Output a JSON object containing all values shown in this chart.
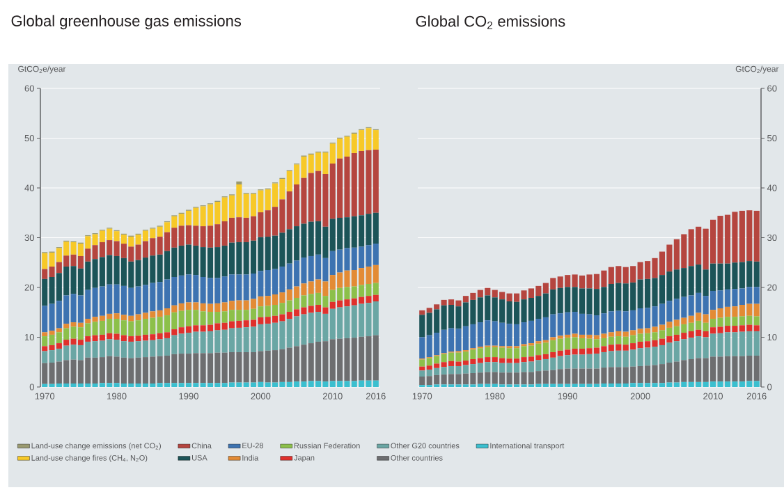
{
  "chart_data": [
    {
      "type": "bar",
      "stacked": true,
      "title": "Global greenhouse gas emissions",
      "ylabel": "GtCO$_{2}$e/year",
      "grid": "y",
      "legend": "bottom",
      "x": [
        1970,
        1971,
        1972,
        1973,
        1974,
        1975,
        1976,
        1977,
        1978,
        1979,
        1980,
        1981,
        1982,
        1983,
        1984,
        1985,
        1986,
        1987,
        1988,
        1989,
        1990,
        1991,
        1992,
        1993,
        1994,
        1995,
        1996,
        1997,
        1998,
        1999,
        2000,
        2001,
        2002,
        2003,
        2004,
        2005,
        2006,
        2007,
        2008,
        2009,
        2010,
        2011,
        2012,
        2013,
        2014,
        2015,
        2016
      ],
      "xlim": [
        1969.4,
        2016.6
      ],
      "xticks": [
        1970,
        1980,
        1990,
        2000,
        2010,
        2016
      ],
      "ylim": [
        0,
        60
      ],
      "yticks": [
        0,
        10,
        20,
        30,
        40,
        50,
        60
      ],
      "series": [
        {
          "name": "International transport",
          "color": "#3bbfcf",
          "values": [
            0.6,
            0.6,
            0.7,
            0.7,
            0.7,
            0.7,
            0.7,
            0.7,
            0.8,
            0.8,
            0.8,
            0.7,
            0.7,
            0.7,
            0.7,
            0.7,
            0.8,
            0.8,
            0.8,
            0.8,
            0.8,
            0.8,
            0.8,
            0.8,
            0.8,
            0.8,
            0.9,
            0.9,
            0.9,
            0.9,
            1.0,
            0.9,
            0.9,
            1.0,
            1.0,
            1.1,
            1.1,
            1.2,
            1.2,
            1.1,
            1.2,
            1.2,
            1.2,
            1.2,
            1.3,
            1.3,
            1.3
          ]
        },
        {
          "name": "Other countries",
          "color": "#6d6e70",
          "values": [
            4.2,
            4.3,
            4.4,
            4.7,
            4.8,
            4.7,
            5.2,
            5.2,
            5.2,
            5.4,
            5.3,
            5.2,
            5.1,
            5.2,
            5.3,
            5.4,
            5.4,
            5.5,
            5.8,
            5.9,
            5.9,
            6.0,
            6.0,
            6.0,
            6.1,
            6.1,
            6.1,
            6.1,
            6.1,
            6.1,
            6.2,
            6.4,
            6.5,
            6.6,
            6.9,
            7.1,
            7.4,
            7.6,
            7.9,
            8.1,
            8.4,
            8.5,
            8.6,
            8.7,
            8.8,
            8.9,
            9.1
          ]
        },
        {
          "name": "Other G20 countries",
          "color": "#6aa6a4",
          "values": [
            2.4,
            2.5,
            2.6,
            2.9,
            3.0,
            3.0,
            3.2,
            3.3,
            3.3,
            3.4,
            3.4,
            3.3,
            3.3,
            3.3,
            3.3,
            3.3,
            3.4,
            3.5,
            3.8,
            4.0,
            4.2,
            4.3,
            4.3,
            4.4,
            4.5,
            4.6,
            4.8,
            4.9,
            5.0,
            5.1,
            5.4,
            5.4,
            5.5,
            5.6,
            5.8,
            6.0,
            6.1,
            6.1,
            6.0,
            5.5,
            6.1,
            6.3,
            6.4,
            6.5,
            6.6,
            6.7,
            6.8
          ]
        },
        {
          "name": "Japan",
          "color": "#e0302c",
          "values": [
            1.0,
            1.0,
            1.1,
            1.2,
            1.2,
            1.1,
            1.1,
            1.2,
            1.2,
            1.2,
            1.2,
            1.2,
            1.1,
            1.1,
            1.2,
            1.2,
            1.2,
            1.2,
            1.2,
            1.3,
            1.3,
            1.3,
            1.3,
            1.3,
            1.4,
            1.4,
            1.4,
            1.4,
            1.4,
            1.4,
            1.4,
            1.4,
            1.4,
            1.4,
            1.4,
            1.4,
            1.4,
            1.4,
            1.4,
            1.3,
            1.4,
            1.4,
            1.4,
            1.4,
            1.4,
            1.4,
            1.3
          ]
        },
        {
          "name": "Russian Federation",
          "color": "#8cc04a",
          "values": [
            2.0,
            2.1,
            2.2,
            2.3,
            2.4,
            2.5,
            2.6,
            2.7,
            2.8,
            2.9,
            3.0,
            3.0,
            3.0,
            3.1,
            3.2,
            3.3,
            3.3,
            3.4,
            3.4,
            3.3,
            3.3,
            3.1,
            2.8,
            2.6,
            2.3,
            2.3,
            2.3,
            2.2,
            2.1,
            2.2,
            2.2,
            2.2,
            2.2,
            2.3,
            2.3,
            2.3,
            2.4,
            2.4,
            2.4,
            2.3,
            2.4,
            2.5,
            2.5,
            2.4,
            2.4,
            2.4,
            2.4
          ]
        },
        {
          "name": "India",
          "color": "#e38b35",
          "values": [
            0.8,
            0.8,
            0.8,
            0.9,
            0.9,
            0.9,
            0.9,
            1.0,
            1.0,
            1.0,
            1.1,
            1.1,
            1.1,
            1.2,
            1.2,
            1.3,
            1.3,
            1.4,
            1.4,
            1.5,
            1.5,
            1.5,
            1.6,
            1.6,
            1.7,
            1.8,
            1.8,
            1.9,
            1.9,
            2.0,
            2.0,
            2.0,
            2.1,
            2.1,
            2.2,
            2.3,
            2.4,
            2.5,
            2.7,
            2.9,
            3.0,
            3.1,
            3.3,
            3.3,
            3.4,
            3.5,
            3.6
          ]
        },
        {
          "name": "EU-28",
          "color": "#3d73b1",
          "values": [
            5.3,
            5.4,
            5.5,
            5.7,
            5.7,
            5.5,
            5.8,
            5.8,
            5.9,
            5.9,
            5.8,
            5.8,
            5.6,
            5.6,
            5.6,
            5.7,
            5.7,
            5.8,
            5.7,
            5.6,
            5.6,
            5.5,
            5.3,
            5.2,
            5.1,
            5.2,
            5.3,
            5.2,
            5.2,
            5.1,
            5.1,
            5.2,
            5.1,
            5.2,
            5.2,
            5.2,
            5.2,
            5.1,
            5.0,
            4.7,
            4.8,
            4.6,
            4.5,
            4.5,
            4.3,
            4.3,
            4.3
          ]
        },
        {
          "name": "USA",
          "color": "#1c5458",
          "values": [
            5.4,
            5.4,
            5.6,
            5.8,
            5.6,
            5.4,
            5.7,
            5.8,
            5.9,
            5.9,
            5.7,
            5.6,
            5.3,
            5.3,
            5.5,
            5.5,
            5.5,
            5.7,
            5.9,
            6.0,
            6.0,
            5.9,
            6.0,
            6.1,
            6.2,
            6.2,
            6.4,
            6.5,
            6.5,
            6.6,
            6.8,
            6.7,
            6.7,
            6.8,
            6.9,
            6.9,
            6.8,
            6.9,
            6.7,
            6.3,
            6.5,
            6.4,
            6.2,
            6.3,
            6.3,
            6.3,
            6.2
          ]
        },
        {
          "name": "China",
          "color": "#b5453f",
          "values": [
            2.0,
            2.1,
            2.2,
            2.2,
            2.3,
            2.5,
            2.6,
            2.8,
            3.0,
            3.0,
            3.0,
            2.9,
            3.0,
            3.1,
            3.3,
            3.5,
            3.6,
            3.8,
            4.0,
            4.0,
            3.9,
            4.0,
            4.2,
            4.4,
            4.6,
            4.9,
            5.0,
            5.0,
            4.9,
            4.9,
            5.0,
            5.3,
            5.8,
            6.7,
            7.6,
            8.4,
            9.2,
            9.8,
            10.1,
            10.6,
            11.1,
            11.9,
            12.2,
            12.7,
            12.9,
            12.8,
            12.7
          ]
        },
        {
          "name": "Land-use change fires (CH$_{4}$, N$_{2}$O)",
          "color": "#f7c928",
          "values": [
            3.2,
            2.8,
            2.8,
            2.8,
            2.5,
            2.5,
            2.5,
            2.2,
            2.3,
            2.3,
            2.0,
            1.8,
            2.0,
            2.0,
            2.1,
            1.9,
            2.0,
            2.0,
            2.3,
            2.4,
            2.9,
            3.6,
            4.0,
            4.3,
            4.5,
            4.8,
            4.5,
            6.6,
            4.8,
            4.5,
            4.4,
            4.2,
            4.7,
            4.1,
            4.1,
            4.0,
            4.3,
            3.7,
            3.7,
            4.3,
            4.0,
            4.0,
            4.0,
            3.9,
            4.2,
            4.4,
            3.9
          ]
        },
        {
          "name": "Land-use change emissions (net CO$_{2}$)",
          "color": "#9a9a70",
          "values": [
            0.2,
            0.2,
            0.2,
            0.2,
            0.2,
            0.2,
            0.2,
            0.2,
            0.2,
            0.2,
            0.2,
            0.2,
            0.2,
            0.2,
            0.2,
            0.2,
            0.2,
            0.2,
            0.2,
            0.2,
            0.2,
            0.2,
            0.2,
            0.2,
            0.2,
            0.2,
            0.2,
            0.6,
            0.2,
            0.2,
            0.2,
            0.2,
            0.2,
            0.2,
            0.2,
            0.2,
            0.2,
            0.2,
            0.2,
            0.2,
            0.2,
            0.2,
            0.2,
            0.2,
            0.2,
            0.2,
            0.2
          ]
        }
      ]
    },
    {
      "type": "bar",
      "stacked": true,
      "title": "Global CO$_{2}$ emissions",
      "ylabel": "GtCO$_{2}$/year",
      "grid": "y",
      "x": [
        1970,
        1971,
        1972,
        1973,
        1974,
        1975,
        1976,
        1977,
        1978,
        1979,
        1980,
        1981,
        1982,
        1983,
        1984,
        1985,
        1986,
        1987,
        1988,
        1989,
        1990,
        1991,
        1992,
        1993,
        1994,
        1995,
        1996,
        1997,
        1998,
        1999,
        2000,
        2001,
        2002,
        2003,
        2004,
        2005,
        2006,
        2007,
        2008,
        2009,
        2010,
        2011,
        2012,
        2013,
        2014,
        2015,
        2016
      ],
      "xlim": [
        1969.4,
        2016.6
      ],
      "xticks": [
        1970,
        1980,
        1990,
        2000,
        2010,
        2016
      ],
      "ylim": [
        0,
        60
      ],
      "yticks": [
        0,
        10,
        20,
        30,
        40,
        50,
        60
      ],
      "series": [
        {
          "color": "#3bbfcf",
          "values": [
            0.4,
            0.4,
            0.5,
            0.5,
            0.5,
            0.5,
            0.5,
            0.5,
            0.6,
            0.6,
            0.6,
            0.5,
            0.5,
            0.5,
            0.5,
            0.5,
            0.6,
            0.6,
            0.6,
            0.6,
            0.6,
            0.6,
            0.6,
            0.6,
            0.6,
            0.7,
            0.7,
            0.7,
            0.7,
            0.8,
            0.8,
            0.8,
            0.8,
            0.8,
            0.9,
            0.9,
            1.0,
            1.0,
            1.0,
            1.0,
            1.1,
            1.1,
            1.1,
            1.1,
            1.1,
            1.2,
            1.2
          ]
        },
        {
          "color": "#6d6e70",
          "values": [
            1.7,
            1.8,
            1.9,
            2.0,
            2.1,
            2.1,
            2.2,
            2.3,
            2.3,
            2.4,
            2.4,
            2.4,
            2.4,
            2.4,
            2.5,
            2.5,
            2.6,
            2.7,
            2.8,
            3.0,
            3.1,
            3.1,
            3.1,
            3.1,
            3.1,
            3.2,
            3.3,
            3.3,
            3.3,
            3.3,
            3.4,
            3.5,
            3.6,
            3.8,
            4.0,
            4.2,
            4.4,
            4.6,
            4.8,
            4.8,
            5.0,
            5.0,
            5.1,
            5.1,
            5.1,
            5.1,
            5.1
          ]
        },
        {
          "color": "#6aa6a4",
          "values": [
            1.2,
            1.3,
            1.4,
            1.5,
            1.6,
            1.6,
            1.7,
            1.8,
            1.9,
            2.0,
            2.0,
            1.9,
            1.9,
            1.9,
            2.0,
            2.1,
            2.2,
            2.3,
            2.5,
            2.6,
            2.7,
            2.8,
            2.8,
            2.9,
            3.0,
            3.1,
            3.2,
            3.3,
            3.3,
            3.4,
            3.6,
            3.6,
            3.7,
            3.8,
            4.0,
            4.1,
            4.2,
            4.3,
            4.4,
            4.2,
            4.6,
            4.7,
            4.8,
            4.8,
            4.9,
            4.9,
            4.9
          ]
        },
        {
          "color": "#e0302c",
          "values": [
            0.8,
            0.8,
            0.9,
            1.0,
            1.0,
            0.9,
            0.9,
            1.0,
            1.0,
            1.0,
            1.0,
            1.0,
            0.9,
            0.9,
            1.0,
            1.0,
            1.0,
            1.0,
            1.1,
            1.1,
            1.1,
            1.2,
            1.2,
            1.2,
            1.2,
            1.2,
            1.3,
            1.3,
            1.2,
            1.3,
            1.3,
            1.3,
            1.3,
            1.3,
            1.3,
            1.3,
            1.3,
            1.3,
            1.3,
            1.2,
            1.3,
            1.3,
            1.3,
            1.3,
            1.3,
            1.3,
            1.2
          ]
        },
        {
          "color": "#8cc04a",
          "values": [
            1.4,
            1.5,
            1.5,
            1.6,
            1.7,
            1.8,
            1.8,
            1.9,
            2.0,
            2.0,
            2.0,
            2.1,
            2.1,
            2.1,
            2.2,
            2.2,
            2.3,
            2.3,
            2.4,
            2.4,
            2.4,
            2.3,
            2.1,
            1.9,
            1.7,
            1.6,
            1.6,
            1.6,
            1.6,
            1.6,
            1.6,
            1.6,
            1.6,
            1.7,
            1.7,
            1.7,
            1.7,
            1.7,
            1.8,
            1.7,
            1.7,
            1.8,
            1.8,
            1.8,
            1.8,
            1.8,
            1.8
          ]
        },
        {
          "color": "#e38b35",
          "values": [
            0.2,
            0.2,
            0.2,
            0.2,
            0.2,
            0.3,
            0.3,
            0.3,
            0.3,
            0.3,
            0.3,
            0.3,
            0.4,
            0.4,
            0.4,
            0.5,
            0.5,
            0.5,
            0.6,
            0.6,
            0.6,
            0.7,
            0.7,
            0.8,
            0.8,
            0.9,
            0.9,
            1.0,
            1.0,
            1.0,
            1.0,
            1.0,
            1.1,
            1.1,
            1.2,
            1.3,
            1.3,
            1.4,
            1.6,
            1.7,
            1.8,
            1.9,
            2.0,
            2.1,
            2.3,
            2.4,
            2.5
          ]
        },
        {
          "color": "#3d73b1",
          "values": [
            4.3,
            4.4,
            4.5,
            4.7,
            4.7,
            4.5,
            4.8,
            4.8,
            4.9,
            5.1,
            4.9,
            4.7,
            4.5,
            4.4,
            4.4,
            4.5,
            4.5,
            4.6,
            4.6,
            4.5,
            4.5,
            4.4,
            4.2,
            4.1,
            4.0,
            4.1,
            4.2,
            4.1,
            4.1,
            4.0,
            4.1,
            4.1,
            4.1,
            4.2,
            4.2,
            4.2,
            4.2,
            4.1,
            4.0,
            3.7,
            3.8,
            3.6,
            3.5,
            3.5,
            3.3,
            3.4,
            3.4
          ]
        },
        {
          "color": "#1c5458",
          "values": [
            4.5,
            4.5,
            4.7,
            4.9,
            4.7,
            4.5,
            4.8,
            4.9,
            5.0,
            5.0,
            4.8,
            4.7,
            4.5,
            4.5,
            4.6,
            4.6,
            4.6,
            4.8,
            5.0,
            5.1,
            5.1,
            5.0,
            5.1,
            5.2,
            5.3,
            5.3,
            5.5,
            5.6,
            5.6,
            5.6,
            5.8,
            5.8,
            5.7,
            5.8,
            5.9,
            5.9,
            5.8,
            5.9,
            5.7,
            5.3,
            5.5,
            5.4,
            5.2,
            5.3,
            5.3,
            5.2,
            5.1
          ]
        },
        {
          "color": "#b5453f",
          "values": [
            0.9,
            1.0,
            1.0,
            1.1,
            1.1,
            1.2,
            1.3,
            1.4,
            1.5,
            1.5,
            1.5,
            1.5,
            1.6,
            1.7,
            1.8,
            1.9,
            2.0,
            2.1,
            2.3,
            2.3,
            2.4,
            2.5,
            2.6,
            2.8,
            3.0,
            3.3,
            3.4,
            3.4,
            3.3,
            3.3,
            3.5,
            3.6,
            4.0,
            4.7,
            5.4,
            6.1,
            6.8,
            7.4,
            7.6,
            8.2,
            8.8,
            9.6,
            9.8,
            10.2,
            10.3,
            10.2,
            10.2
          ]
        }
      ]
    }
  ]
}
